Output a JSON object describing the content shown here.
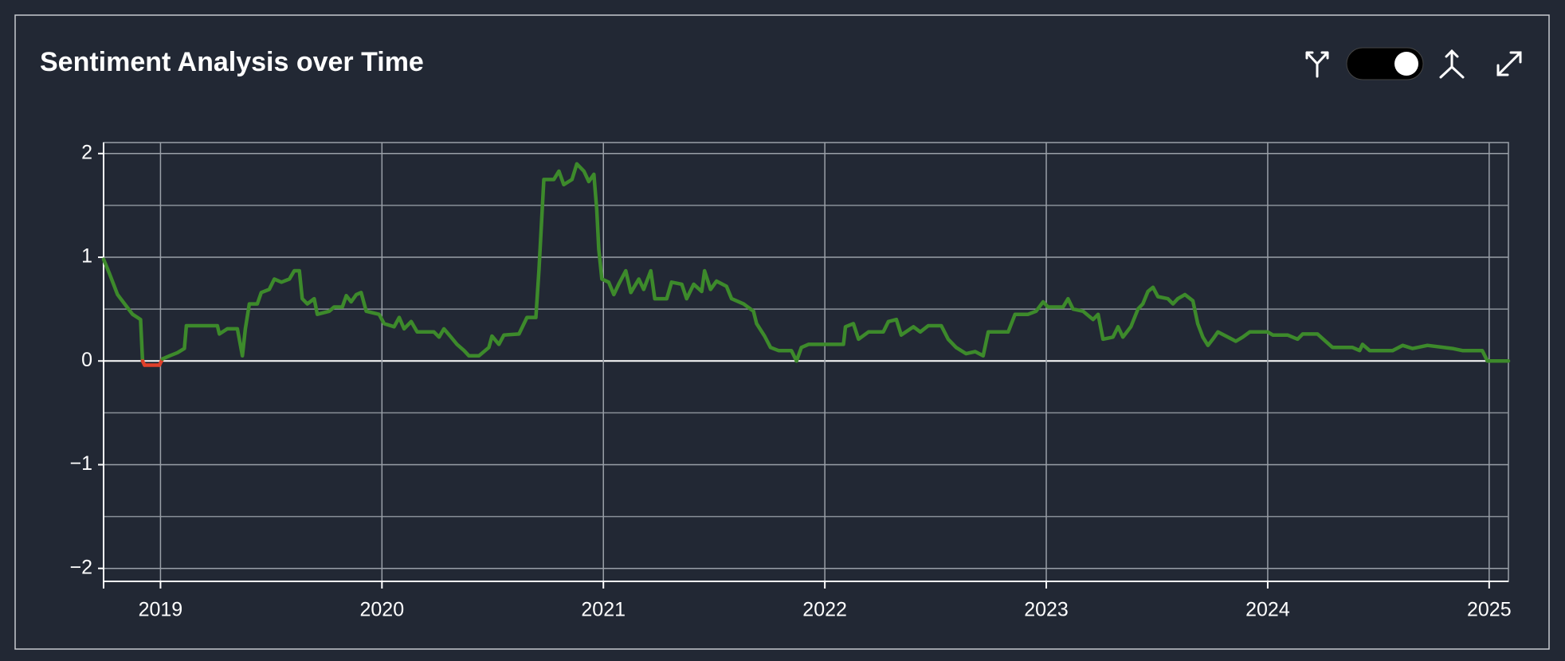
{
  "chart_data": {
    "type": "line",
    "title": "Sentiment Analysis over Time",
    "x": [
      2018.743,
      2018.77,
      2018.806,
      2018.838,
      2018.874,
      2018.896,
      2018.91,
      2018.919,
      2018.928,
      2018.995,
      2019.009,
      2019.041,
      2019.077,
      2019.108,
      2019.117,
      2019.257,
      2019.266,
      2019.302,
      2019.347,
      2019.37,
      2019.383,
      2019.401,
      2019.437,
      2019.455,
      2019.491,
      2019.514,
      2019.546,
      2019.582,
      2019.604,
      2019.627,
      2019.64,
      2019.663,
      2019.694,
      2019.708,
      2019.762,
      2019.784,
      2019.821,
      2019.839,
      2019.861,
      2019.884,
      2019.906,
      2019.929,
      2019.987,
      2020.01,
      2020.055,
      2020.078,
      2020.1,
      2020.132,
      2020.159,
      2020.235,
      2020.258,
      2020.28,
      2020.312,
      2020.339,
      2020.371,
      2020.393,
      2020.438,
      2020.483,
      2020.497,
      2020.528,
      2020.551,
      2020.619,
      2020.655,
      2020.695,
      2020.709,
      2020.731,
      2020.776,
      2020.799,
      2020.821,
      2020.858,
      2020.88,
      2020.912,
      2020.934,
      2020.957,
      2020.97,
      2020.979,
      2020.993,
      2021.024,
      2021.047,
      2021.069,
      2021.101,
      2021.124,
      2021.16,
      2021.182,
      2021.214,
      2021.232,
      2021.286,
      2021.308,
      2021.354,
      2021.376,
      2021.408,
      2021.444,
      2021.457,
      2021.484,
      2021.511,
      2021.556,
      2021.579,
      2021.633,
      2021.678,
      2021.692,
      2021.728,
      2021.755,
      2021.791,
      2021.849,
      2021.872,
      2021.894,
      2021.926,
      2022.084,
      2022.093,
      2022.129,
      2022.152,
      2022.197,
      2022.264,
      2022.287,
      2022.323,
      2022.345,
      2022.4,
      2022.431,
      2022.467,
      2022.526,
      2022.557,
      2022.593,
      2022.638,
      2022.679,
      2022.715,
      2022.738,
      2022.828,
      2022.859,
      2022.918,
      2022.954,
      2022.986,
      2023.008,
      2023.076,
      2023.098,
      2023.121,
      2023.166,
      2023.211,
      2023.234,
      2023.256,
      2023.301,
      2023.324,
      2023.346,
      2023.382,
      2023.414,
      2023.436,
      2023.459,
      2023.482,
      2023.504,
      2023.549,
      2023.572,
      2023.594,
      2023.626,
      2023.662,
      2023.684,
      2023.707,
      2023.73,
      2023.752,
      2023.775,
      2023.82,
      2023.856,
      2023.887,
      2023.919,
      2024.0,
      2024.023,
      2024.09,
      2024.135,
      2024.158,
      2024.225,
      2024.293,
      2024.383,
      2024.415,
      2024.428,
      2024.46,
      2024.564,
      2024.609,
      2024.654,
      2024.721,
      2024.834,
      2024.879,
      2024.969,
      2024.992,
      2025.087
    ],
    "series": [
      {
        "color": "#3d8a2b",
        "negative_color": "#e0402a",
        "values": [
          0.98,
          0.84,
          0.64,
          0.55,
          0.45,
          0.42,
          0.4,
          0,
          -0.04,
          -0.04,
          0.02,
          0.05,
          0.08,
          0.12,
          0.34,
          0.34,
          0.26,
          0.31,
          0.31,
          0.05,
          0.31,
          0.55,
          0.55,
          0.66,
          0.69,
          0.79,
          0.76,
          0.79,
          0.87,
          0.87,
          0.6,
          0.55,
          0.6,
          0.45,
          0.48,
          0.52,
          0.52,
          0.63,
          0.57,
          0.64,
          0.66,
          0.48,
          0.45,
          0.36,
          0.33,
          0.42,
          0.31,
          0.38,
          0.28,
          0.28,
          0.23,
          0.31,
          0.23,
          0.16,
          0.1,
          0.05,
          0.05,
          0.13,
          0.24,
          0.16,
          0.25,
          0.26,
          0.42,
          0.42,
          0.88,
          1.75,
          1.75,
          1.83,
          1.7,
          1.75,
          1.9,
          1.83,
          1.73,
          1.8,
          1.46,
          1.08,
          0.79,
          0.76,
          0.64,
          0.74,
          0.87,
          0.66,
          0.79,
          0.69,
          0.87,
          0.6,
          0.6,
          0.76,
          0.74,
          0.6,
          0.74,
          0.67,
          0.87,
          0.69,
          0.77,
          0.72,
          0.6,
          0.55,
          0.48,
          0.36,
          0.24,
          0.13,
          0.1,
          0.1,
          0,
          0.13,
          0.16,
          0.16,
          0.33,
          0.36,
          0.21,
          0.28,
          0.28,
          0.38,
          0.4,
          0.25,
          0.33,
          0.28,
          0.34,
          0.34,
          0.21,
          0.13,
          0.07,
          0.09,
          0.05,
          0.28,
          0.28,
          0.45,
          0.45,
          0.48,
          0.57,
          0.52,
          0.52,
          0.6,
          0.5,
          0.48,
          0.4,
          0.45,
          0.21,
          0.23,
          0.33,
          0.23,
          0.33,
          0.5,
          0.55,
          0.67,
          0.71,
          0.62,
          0.6,
          0.55,
          0.6,
          0.64,
          0.58,
          0.36,
          0.23,
          0.15,
          0.21,
          0.28,
          0.23,
          0.19,
          0.23,
          0.28,
          0.28,
          0.25,
          0.25,
          0.21,
          0.26,
          0.26,
          0.13,
          0.13,
          0.1,
          0.16,
          0.1,
          0.1,
          0.15,
          0.12,
          0.15,
          0.12,
          0.1,
          0.1,
          0,
          0
        ]
      }
    ],
    "xlim": [
      2018.743,
      2025.087
    ],
    "ylim": [
      -2.125,
      2.106
    ],
    "xticks": [
      2019,
      2020,
      2021,
      2022,
      2023,
      2024,
      2025
    ],
    "yticks": [
      {
        "value": -2,
        "label": "−2"
      },
      {
        "value": -1,
        "label": "−1"
      },
      0,
      1,
      2
    ],
    "y_minor_grid": [
      -1.5,
      -0.5,
      0.5,
      1.5
    ],
    "grid": true
  }
}
